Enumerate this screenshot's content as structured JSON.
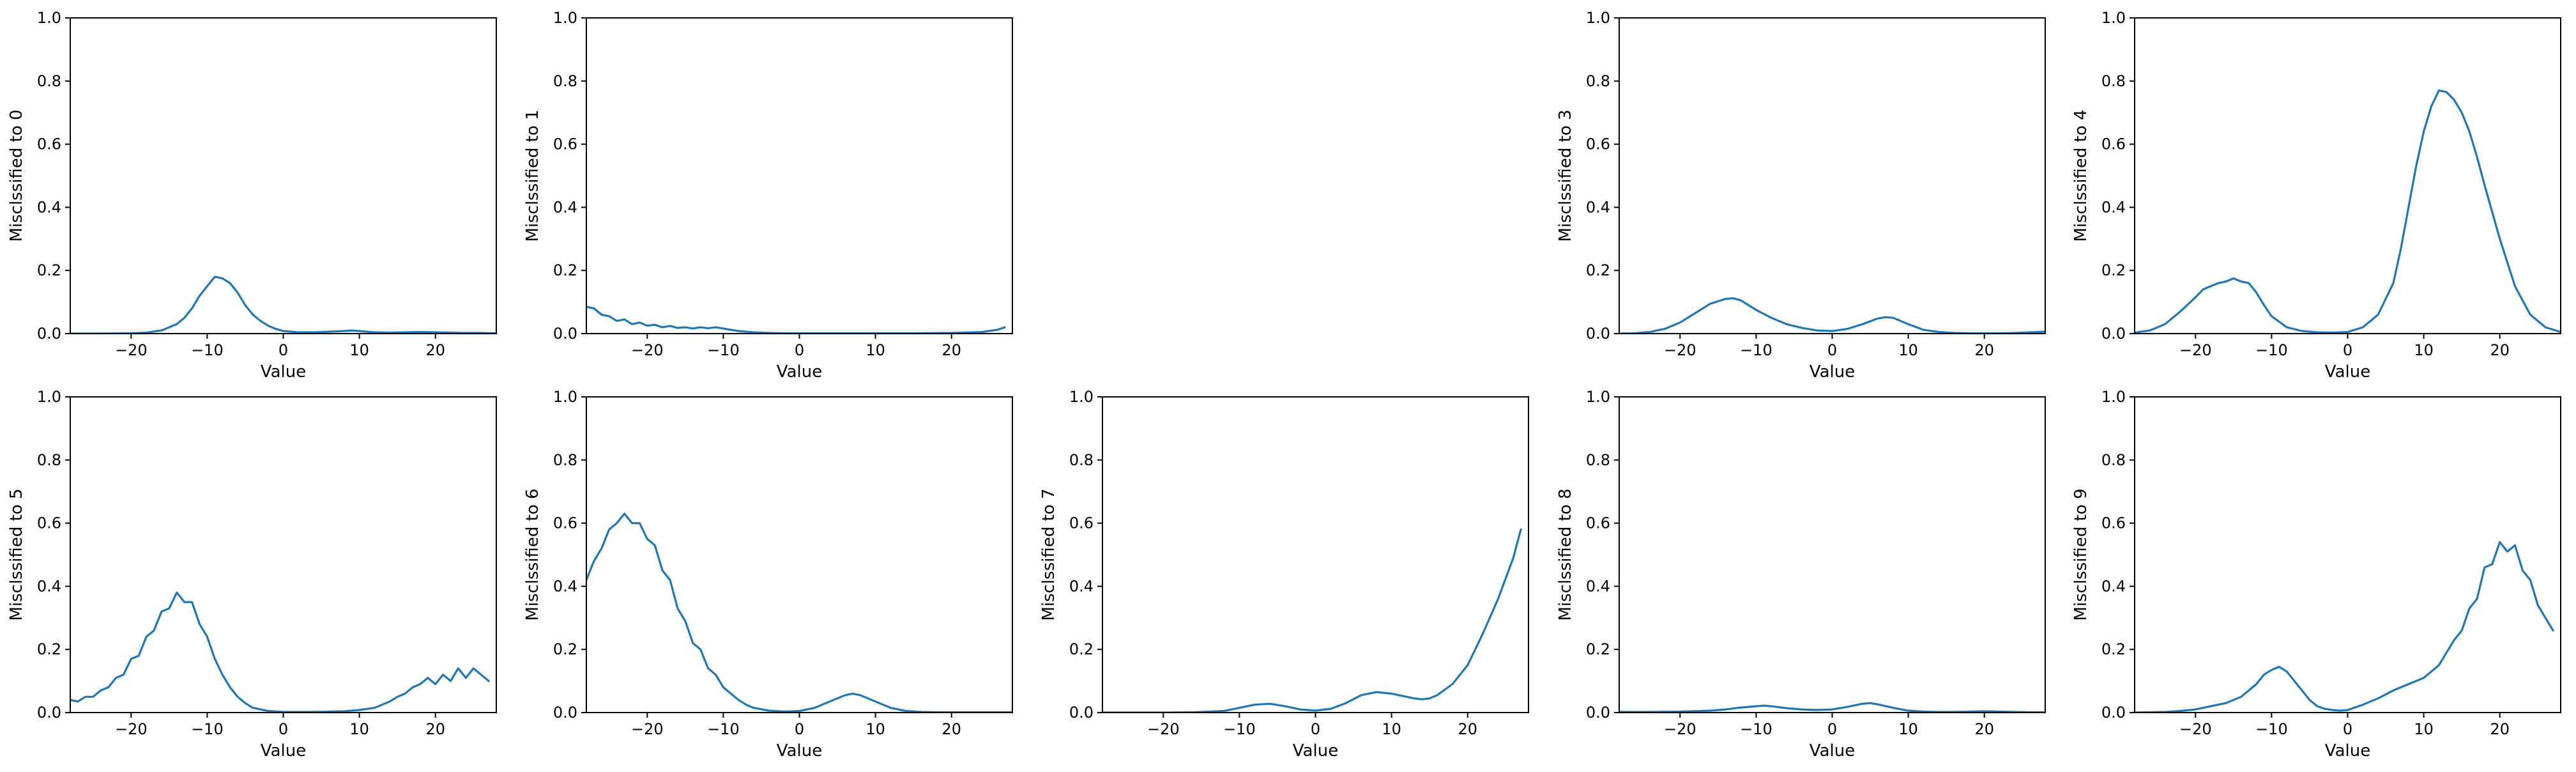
{
  "chart_data": [
    {
      "type": "line",
      "title": "",
      "xlabel": "Value",
      "ylabel": "Misclssified to 0",
      "xlim": [
        -28,
        28
      ],
      "ylim": [
        0,
        1
      ],
      "xticks": [
        -20,
        -10,
        0,
        10,
        20
      ],
      "yticks": [
        0.0,
        0.2,
        0.4,
        0.6,
        0.8,
        1.0
      ],
      "series": [
        {
          "x": [
            -28,
            -24,
            -20,
            -18,
            -16,
            -14,
            -13,
            -12,
            -11,
            -10,
            -9,
            -8,
            -7,
            -6,
            -5,
            -4,
            -3,
            -2,
            -1,
            0,
            2,
            4,
            6,
            8,
            9,
            10,
            12,
            14,
            16,
            18,
            20,
            22,
            24,
            26,
            28
          ],
          "y": [
            0,
            0,
            0.001,
            0.003,
            0.01,
            0.03,
            0.05,
            0.08,
            0.12,
            0.15,
            0.18,
            0.175,
            0.16,
            0.13,
            0.09,
            0.06,
            0.04,
            0.025,
            0.015,
            0.008,
            0.004,
            0.004,
            0.006,
            0.008,
            0.01,
            0.008,
            0.004,
            0.003,
            0.004,
            0.005,
            0.004,
            0.003,
            0.002,
            0.002,
            0.001
          ]
        }
      ]
    },
    {
      "type": "line",
      "title": "",
      "xlabel": "Value",
      "ylabel": "Misclssified to 1",
      "xlim": [
        -28,
        28
      ],
      "ylim": [
        0,
        1
      ],
      "xticks": [
        -20,
        -10,
        0,
        10,
        20
      ],
      "yticks": [
        0.0,
        0.2,
        0.4,
        0.6,
        0.8,
        1.0
      ],
      "series": [
        {
          "x": [
            -28,
            -27,
            -26,
            -25,
            -24,
            -23,
            -22,
            -21,
            -20,
            -19,
            -18,
            -17,
            -16,
            -15,
            -14,
            -13,
            -12,
            -11,
            -10,
            -9,
            -8,
            -6,
            -4,
            -2,
            0,
            5,
            10,
            15,
            20,
            24,
            26,
            27
          ],
          "y": [
            0.085,
            0.08,
            0.06,
            0.055,
            0.04,
            0.045,
            0.03,
            0.035,
            0.025,
            0.028,
            0.02,
            0.024,
            0.018,
            0.02,
            0.016,
            0.02,
            0.017,
            0.02,
            0.016,
            0.012,
            0.008,
            0.004,
            0.002,
            0.001,
            0.001,
            0.001,
            0.001,
            0.001,
            0.002,
            0.005,
            0.012,
            0.02
          ]
        }
      ]
    },
    null,
    {
      "type": "line",
      "title": "",
      "xlabel": "Value",
      "ylabel": "Misclssified to 3",
      "xlim": [
        -28,
        28
      ],
      "ylim": [
        0,
        1
      ],
      "xticks": [
        -20,
        -10,
        0,
        10,
        20
      ],
      "yticks": [
        0.0,
        0.2,
        0.4,
        0.6,
        0.8,
        1.0
      ],
      "series": [
        {
          "x": [
            -28,
            -26,
            -24,
            -22,
            -20,
            -18,
            -16,
            -14,
            -13,
            -12,
            -10,
            -8,
            -6,
            -4,
            -2,
            0,
            2,
            4,
            6,
            7,
            8,
            10,
            12,
            14,
            16,
            18,
            20,
            22,
            24,
            26,
            28
          ],
          "y": [
            0,
            0.001,
            0.005,
            0.015,
            0.035,
            0.065,
            0.095,
            0.11,
            0.112,
            0.105,
            0.075,
            0.05,
            0.03,
            0.018,
            0.01,
            0.008,
            0.015,
            0.03,
            0.048,
            0.052,
            0.05,
            0.03,
            0.012,
            0.005,
            0.002,
            0.001,
            0.001,
            0.001,
            0.002,
            0.004,
            0.006
          ]
        }
      ]
    },
    {
      "type": "line",
      "title": "",
      "xlabel": "Value",
      "ylabel": "Misclssified to 4",
      "xlim": [
        -28,
        28
      ],
      "ylim": [
        0,
        1
      ],
      "xticks": [
        -20,
        -10,
        0,
        10,
        20
      ],
      "yticks": [
        0.0,
        0.2,
        0.4,
        0.6,
        0.8,
        1.0
      ],
      "series": [
        {
          "x": [
            -28,
            -26,
            -24,
            -22,
            -20,
            -19,
            -18,
            -17,
            -16,
            -15,
            -14,
            -13,
            -12,
            -11,
            -10,
            -8,
            -6,
            -4,
            -2,
            0,
            2,
            4,
            6,
            7,
            8,
            9,
            10,
            11,
            12,
            13,
            14,
            15,
            16,
            17,
            18,
            20,
            22,
            24,
            26,
            28
          ],
          "y": [
            0.003,
            0.01,
            0.03,
            0.07,
            0.115,
            0.14,
            0.15,
            0.16,
            0.165,
            0.175,
            0.165,
            0.16,
            0.13,
            0.09,
            0.055,
            0.02,
            0.008,
            0.004,
            0.003,
            0.005,
            0.02,
            0.06,
            0.16,
            0.27,
            0.4,
            0.53,
            0.64,
            0.72,
            0.77,
            0.765,
            0.74,
            0.7,
            0.64,
            0.56,
            0.47,
            0.3,
            0.15,
            0.06,
            0.02,
            0.005
          ]
        }
      ]
    },
    {
      "type": "line",
      "title": "",
      "xlabel": "Value",
      "ylabel": "Misclssified to 5",
      "xlim": [
        -28,
        28
      ],
      "ylim": [
        0,
        1
      ],
      "xticks": [
        -20,
        -10,
        0,
        10,
        20
      ],
      "yticks": [
        0.0,
        0.2,
        0.4,
        0.6,
        0.8,
        1.0
      ],
      "series": [
        {
          "x": [
            -28,
            -27,
            -26,
            -25,
            -24,
            -23,
            -22,
            -21,
            -20,
            -19,
            -18,
            -17,
            -16,
            -15,
            -14,
            -13,
            -12,
            -11,
            -10,
            -9,
            -8,
            -7,
            -6,
            -5,
            -4,
            -2,
            0,
            4,
            8,
            10,
            12,
            13,
            14,
            15,
            16,
            17,
            18,
            19,
            20,
            21,
            22,
            23,
            24,
            25,
            26,
            27
          ],
          "y": [
            0.04,
            0.035,
            0.05,
            0.05,
            0.07,
            0.08,
            0.11,
            0.12,
            0.17,
            0.18,
            0.24,
            0.26,
            0.32,
            0.33,
            0.38,
            0.35,
            0.35,
            0.28,
            0.24,
            0.17,
            0.12,
            0.08,
            0.05,
            0.03,
            0.015,
            0.005,
            0.002,
            0.002,
            0.004,
            0.008,
            0.015,
            0.025,
            0.035,
            0.05,
            0.06,
            0.08,
            0.09,
            0.11,
            0.09,
            0.12,
            0.1,
            0.14,
            0.11,
            0.14,
            0.12,
            0.1
          ]
        }
      ]
    },
    {
      "type": "line",
      "title": "",
      "xlabel": "Value",
      "ylabel": "Misclssified to 6",
      "xlim": [
        -28,
        28
      ],
      "ylim": [
        0,
        1
      ],
      "xticks": [
        -20,
        -10,
        0,
        10,
        20
      ],
      "yticks": [
        0.0,
        0.2,
        0.4,
        0.6,
        0.8,
        1.0
      ],
      "series": [
        {
          "x": [
            -28,
            -27,
            -26,
            -25,
            -24,
            -23,
            -22,
            -21,
            -20,
            -19,
            -18,
            -17,
            -16,
            -15,
            -14,
            -13,
            -12,
            -11,
            -10,
            -9,
            -8,
            -7,
            -6,
            -4,
            -2,
            0,
            2,
            4,
            6,
            7,
            8,
            10,
            12,
            14,
            16,
            18,
            20,
            22,
            24,
            26,
            28
          ],
          "y": [
            0.42,
            0.48,
            0.52,
            0.58,
            0.6,
            0.63,
            0.6,
            0.6,
            0.55,
            0.53,
            0.45,
            0.42,
            0.33,
            0.29,
            0.22,
            0.2,
            0.14,
            0.12,
            0.08,
            0.06,
            0.04,
            0.025,
            0.015,
            0.006,
            0.003,
            0.005,
            0.015,
            0.035,
            0.055,
            0.06,
            0.055,
            0.035,
            0.015,
            0.005,
            0.002,
            0.001,
            0.001,
            0.001,
            0.001,
            0.001,
            0.001
          ]
        }
      ]
    },
    {
      "type": "line",
      "title": "",
      "xlabel": "Value",
      "ylabel": "Misclssified to 7",
      "xlim": [
        -28,
        28
      ],
      "ylim": [
        0,
        1
      ],
      "xticks": [
        -20,
        -10,
        0,
        10,
        20
      ],
      "yticks": [
        0.0,
        0.2,
        0.4,
        0.6,
        0.8,
        1.0
      ],
      "series": [
        {
          "x": [
            -28,
            -24,
            -20,
            -16,
            -12,
            -10,
            -8,
            -6,
            -4,
            -2,
            0,
            2,
            4,
            6,
            8,
            10,
            12,
            13,
            14,
            15,
            16,
            18,
            20,
            22,
            24,
            26,
            27
          ],
          "y": [
            0,
            0,
            0,
            0.001,
            0.005,
            0.015,
            0.025,
            0.028,
            0.02,
            0.01,
            0.006,
            0.012,
            0.03,
            0.055,
            0.065,
            0.06,
            0.05,
            0.045,
            0.042,
            0.045,
            0.055,
            0.09,
            0.15,
            0.25,
            0.36,
            0.49,
            0.58
          ]
        }
      ]
    },
    {
      "type": "line",
      "title": "",
      "xlabel": "Value",
      "ylabel": "Misclssified to 8",
      "xlim": [
        -28,
        28
      ],
      "ylim": [
        0,
        1
      ],
      "xticks": [
        -20,
        -10,
        0,
        10,
        20
      ],
      "yticks": [
        0.0,
        0.2,
        0.4,
        0.6,
        0.8,
        1.0
      ],
      "series": [
        {
          "x": [
            -28,
            -24,
            -20,
            -16,
            -14,
            -12,
            -10,
            -9,
            -8,
            -6,
            -4,
            -2,
            0,
            2,
            4,
            5,
            6,
            8,
            10,
            12,
            14,
            16,
            18,
            20,
            22,
            24,
            26,
            28
          ],
          "y": [
            0.002,
            0.002,
            0.003,
            0.006,
            0.01,
            0.016,
            0.02,
            0.022,
            0.02,
            0.014,
            0.01,
            0.008,
            0.01,
            0.018,
            0.028,
            0.03,
            0.026,
            0.015,
            0.006,
            0.003,
            0.002,
            0.002,
            0.003,
            0.004,
            0.003,
            0.002,
            0.001,
            0.001
          ]
        }
      ]
    },
    {
      "type": "line",
      "title": "",
      "xlabel": "Value",
      "ylabel": "Misclssified to 9",
      "xlim": [
        -28,
        28
      ],
      "ylim": [
        0,
        1
      ],
      "xticks": [
        -20,
        -10,
        0,
        10,
        20
      ],
      "yticks": [
        0.0,
        0.2,
        0.4,
        0.6,
        0.8,
        1.0
      ],
      "series": [
        {
          "x": [
            -28,
            -24,
            -22,
            -20,
            -18,
            -16,
            -14,
            -12,
            -11,
            -10,
            -9,
            -8,
            -7,
            -6,
            -5,
            -4,
            -3,
            -2,
            -1,
            0,
            2,
            4,
            6,
            8,
            10,
            12,
            13,
            14,
            15,
            16,
            17,
            18,
            19,
            20,
            21,
            22,
            23,
            24,
            25,
            26,
            27
          ],
          "y": [
            0,
            0.002,
            0.005,
            0.01,
            0.02,
            0.03,
            0.05,
            0.09,
            0.12,
            0.135,
            0.145,
            0.13,
            0.1,
            0.07,
            0.04,
            0.02,
            0.012,
            0.008,
            0.006,
            0.008,
            0.025,
            0.045,
            0.07,
            0.09,
            0.11,
            0.15,
            0.19,
            0.23,
            0.26,
            0.33,
            0.36,
            0.46,
            0.47,
            0.54,
            0.51,
            0.53,
            0.45,
            0.42,
            0.34,
            0.3,
            0.26
          ]
        }
      ]
    }
  ],
  "colors": {
    "line": "#1f77b4",
    "axes": "#000000",
    "background": "#ffffff"
  }
}
